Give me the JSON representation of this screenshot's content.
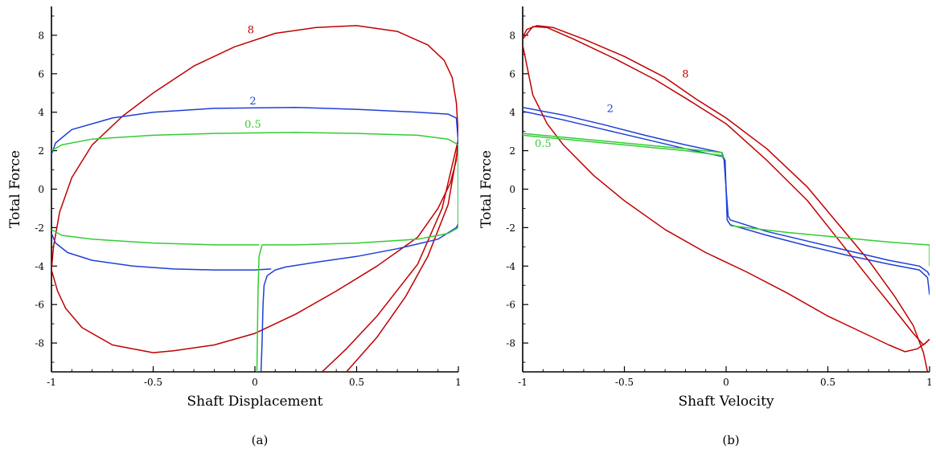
{
  "chart_data": [
    {
      "type": "line",
      "panel": "a",
      "caption": "(a)",
      "xlabel": "Shaft Displacement",
      "ylabel": "Total Force",
      "xlim": [
        -1,
        1
      ],
      "ylim": [
        -9.5,
        9.5
      ],
      "xticks": [
        -1,
        -0.5,
        0,
        0.5,
        1
      ],
      "xtick_labels": [
        "-1",
        "-0.5",
        "0",
        "0.5",
        "1"
      ],
      "yticks": [
        -8,
        -6,
        -4,
        -2,
        0,
        2,
        4,
        6,
        8
      ],
      "ytick_labels": [
        "-8",
        "-6",
        "-4",
        "-2",
        "0",
        "2",
        "4",
        "6",
        "8"
      ],
      "grid": false,
      "series": [
        {
          "name": "8",
          "color": "#c00000",
          "label_at": [
            -0.02,
            8.1
          ],
          "points": [
            [
              -1.0,
              -4.2
            ],
            [
              -0.99,
              -3.0
            ],
            [
              -0.96,
              -1.2
            ],
            [
              -0.9,
              0.6
            ],
            [
              -0.8,
              2.3
            ],
            [
              -0.65,
              3.8
            ],
            [
              -0.5,
              5.0
            ],
            [
              -0.3,
              6.4
            ],
            [
              -0.1,
              7.4
            ],
            [
              0.1,
              8.1
            ],
            [
              0.3,
              8.4
            ],
            [
              0.5,
              8.5
            ],
            [
              0.7,
              8.2
            ],
            [
              0.85,
              7.5
            ],
            [
              0.93,
              6.7
            ],
            [
              0.97,
              5.8
            ],
            [
              0.99,
              4.5
            ],
            [
              1.0,
              2.8
            ],
            [
              0.99,
              1.5
            ],
            [
              0.96,
              0.3
            ],
            [
              0.9,
              -1.0
            ],
            [
              0.8,
              -2.5
            ],
            [
              0.6,
              -4.0
            ],
            [
              0.4,
              -5.3
            ],
            [
              0.2,
              -6.5
            ],
            [
              0.0,
              -7.5
            ],
            [
              -0.2,
              -8.1
            ],
            [
              -0.4,
              -8.4
            ],
            [
              -0.5,
              -8.5
            ],
            [
              -0.7,
              -8.1
            ],
            [
              -0.85,
              -7.2
            ],
            [
              -0.93,
              -6.2
            ],
            [
              -0.97,
              -5.3
            ],
            [
              -1.0,
              -4.2
            ]
          ]
        },
        {
          "name": "8",
          "color": "#c00000",
          "points": [
            [
              1.0,
              2.3
            ],
            [
              0.95,
              -0.8
            ],
            [
              0.85,
              -3.5
            ],
            [
              0.74,
              -5.6
            ],
            [
              0.6,
              -7.7
            ],
            [
              0.5,
              -8.9
            ],
            [
              0.45,
              -9.5
            ]
          ]
        },
        {
          "name": "8",
          "color": "#c00000",
          "points": [
            [
              1.0,
              2.6
            ],
            [
              0.92,
              -1.0
            ],
            [
              0.8,
              -3.9
            ],
            [
              0.6,
              -6.6
            ],
            [
              0.45,
              -8.3
            ],
            [
              0.33,
              -9.5
            ]
          ]
        },
        {
          "name": "2",
          "color": "#1f3fd6",
          "label_at": [
            -0.01,
            4.4
          ],
          "points": [
            [
              -1.0,
              1.8
            ],
            [
              -0.98,
              2.4
            ],
            [
              -0.9,
              3.1
            ],
            [
              -0.7,
              3.7
            ],
            [
              -0.5,
              4.0
            ],
            [
              -0.2,
              4.2
            ],
            [
              0.2,
              4.25
            ],
            [
              0.5,
              4.15
            ],
            [
              0.8,
              4.0
            ],
            [
              0.95,
              3.9
            ],
            [
              0.99,
              3.7
            ],
            [
              1.0,
              2.4
            ],
            [
              1.0,
              -1.8
            ],
            [
              0.99,
              -2.0
            ],
            [
              0.9,
              -2.6
            ],
            [
              0.7,
              -3.1
            ],
            [
              0.5,
              -3.5
            ],
            [
              0.3,
              -3.8
            ],
            [
              0.15,
              -4.05
            ],
            [
              0.1,
              -4.2
            ],
            [
              0.06,
              -4.5
            ],
            [
              0.045,
              -5.0
            ],
            [
              0.04,
              -6.0
            ],
            [
              0.035,
              -8.0
            ],
            [
              0.03,
              -9.5
            ]
          ]
        },
        {
          "name": "2",
          "color": "#1f3fd6",
          "points": [
            [
              -1.0,
              -2.3
            ],
            [
              -0.98,
              -2.8
            ],
            [
              -0.92,
              -3.3
            ],
            [
              -0.8,
              -3.7
            ],
            [
              -0.6,
              -4.0
            ],
            [
              -0.4,
              -4.15
            ],
            [
              -0.2,
              -4.2
            ],
            [
              0.0,
              -4.2
            ],
            [
              0.08,
              -4.15
            ]
          ]
        },
        {
          "name": "0.5",
          "color": "#33cc33",
          "label_at": [
            -0.01,
            3.2
          ],
          "points": [
            [
              -1.0,
              2.0
            ],
            [
              -0.95,
              2.3
            ],
            [
              -0.8,
              2.6
            ],
            [
              -0.5,
              2.8
            ],
            [
              -0.2,
              2.9
            ],
            [
              0.2,
              2.95
            ],
            [
              0.5,
              2.9
            ],
            [
              0.8,
              2.8
            ],
            [
              0.95,
              2.6
            ],
            [
              1.0,
              2.3
            ],
            [
              1.0,
              -2.0
            ],
            [
              0.95,
              -2.3
            ],
            [
              0.8,
              -2.6
            ],
            [
              0.5,
              -2.8
            ],
            [
              0.2,
              -2.9
            ],
            [
              0.05,
              -2.9
            ],
            [
              0.035,
              -2.9
            ],
            [
              0.025,
              -3.3
            ],
            [
              0.02,
              -3.5
            ],
            [
              0.015,
              -5.5
            ],
            [
              0.01,
              -9.5
            ]
          ]
        },
        {
          "name": "0.5",
          "color": "#33cc33",
          "points": [
            [
              -1.0,
              -2.1
            ],
            [
              -0.95,
              -2.4
            ],
            [
              -0.8,
              -2.6
            ],
            [
              -0.5,
              -2.8
            ],
            [
              -0.2,
              -2.9
            ],
            [
              0.02,
              -2.9
            ]
          ]
        }
      ]
    },
    {
      "type": "line",
      "panel": "b",
      "caption": "(b)",
      "xlabel": "Shaft Velocity",
      "ylabel": "Total Force",
      "xlim": [
        -1,
        1
      ],
      "ylim": [
        -9.5,
        9.5
      ],
      "xticks": [
        -1,
        -0.5,
        0,
        0.5,
        1
      ],
      "xtick_labels": [
        "-1",
        "-0.5",
        "0",
        "0.5",
        "1"
      ],
      "yticks": [
        -8,
        -6,
        -4,
        -2,
        0,
        2,
        4,
        6,
        8
      ],
      "ytick_labels": [
        "-8",
        "-6",
        "-4",
        "-2",
        "0",
        "2",
        "4",
        "6",
        "8"
      ],
      "grid": false,
      "series": [
        {
          "name": "8",
          "color": "#c00000",
          "label_at": [
            -0.2,
            5.8
          ],
          "points": [
            [
              -1.0,
              7.9
            ],
            [
              -0.98,
              8.3
            ],
            [
              -0.93,
              8.5
            ],
            [
              -0.85,
              8.4
            ],
            [
              -0.7,
              7.8
            ],
            [
              -0.5,
              6.9
            ],
            [
              -0.3,
              5.8
            ],
            [
              -0.15,
              4.7
            ],
            [
              0.0,
              3.7
            ],
            [
              0.2,
              2.1
            ],
            [
              0.4,
              0.1
            ],
            [
              0.55,
              -1.8
            ],
            [
              0.7,
              -3.7
            ],
            [
              0.83,
              -5.6
            ],
            [
              0.92,
              -7.1
            ],
            [
              0.97,
              -8.5
            ],
            [
              0.99,
              -9.5
            ]
          ]
        },
        {
          "name": "8",
          "color": "#c00000",
          "points": [
            [
              -1.0,
              7.8
            ],
            [
              -0.95,
              8.45
            ],
            [
              -0.88,
              8.4
            ],
            [
              -0.75,
              7.8
            ],
            [
              -0.55,
              6.8
            ],
            [
              -0.35,
              5.7
            ],
            [
              -0.18,
              4.6
            ],
            [
              0.0,
              3.4
            ],
            [
              0.2,
              1.5
            ],
            [
              0.4,
              -0.6
            ],
            [
              0.55,
              -2.6
            ],
            [
              0.7,
              -4.6
            ],
            [
              0.83,
              -6.3
            ],
            [
              0.92,
              -7.5
            ],
            [
              0.97,
              -8.1
            ],
            [
              1.0,
              -7.8
            ]
          ]
        },
        {
          "name": "8",
          "color": "#c00000",
          "points": [
            [
              -1.0,
              7.5
            ],
            [
              -0.95,
              4.9
            ],
            [
              -0.88,
              3.4
            ],
            [
              -0.8,
              2.3
            ],
            [
              -0.65,
              0.7
            ],
            [
              -0.5,
              -0.6
            ],
            [
              -0.3,
              -2.1
            ],
            [
              -0.1,
              -3.3
            ],
            [
              0.1,
              -4.3
            ],
            [
              0.3,
              -5.4
            ],
            [
              0.5,
              -6.6
            ],
            [
              0.7,
              -7.6
            ],
            [
              0.8,
              -8.1
            ],
            [
              0.88,
              -8.45
            ],
            [
              0.94,
              -8.3
            ],
            [
              0.98,
              -8.0
            ],
            [
              1.0,
              -7.8
            ]
          ]
        },
        {
          "name": "2",
          "color": "#1f3fd6",
          "label_at": [
            -0.57,
            4.0
          ],
          "points": [
            [
              -1.0,
              4.25
            ],
            [
              -0.8,
              3.85
            ],
            [
              -0.6,
              3.35
            ],
            [
              -0.4,
              2.8
            ],
            [
              -0.2,
              2.3
            ],
            [
              -0.02,
              1.9
            ],
            [
              -0.01,
              1.5
            ],
            [
              0.0,
              0.0
            ],
            [
              0.01,
              -1.4
            ],
            [
              0.02,
              -1.6
            ],
            [
              0.2,
              -2.2
            ],
            [
              0.4,
              -2.7
            ],
            [
              0.6,
              -3.2
            ],
            [
              0.8,
              -3.7
            ],
            [
              0.95,
              -4.0
            ],
            [
              0.99,
              -4.3
            ],
            [
              1.0,
              -4.5
            ]
          ]
        },
        {
          "name": "2",
          "color": "#1f3fd6",
          "points": [
            [
              -1.0,
              4.05
            ],
            [
              -0.8,
              3.6
            ],
            [
              -0.6,
              3.1
            ],
            [
              -0.4,
              2.6
            ],
            [
              -0.2,
              2.1
            ],
            [
              -0.02,
              1.7
            ],
            [
              -0.005,
              1.5
            ],
            [
              0.005,
              -1.6
            ],
            [
              0.02,
              -1.85
            ],
            [
              0.2,
              -2.4
            ],
            [
              0.4,
              -2.95
            ],
            [
              0.6,
              -3.45
            ],
            [
              0.8,
              -3.9
            ],
            [
              0.95,
              -4.2
            ],
            [
              0.99,
              -4.6
            ],
            [
              1.0,
              -5.5
            ]
          ]
        },
        {
          "name": "0.5",
          "color": "#33cc33",
          "label_at": [
            -0.9,
            2.2
          ],
          "points": [
            [
              -1.0,
              2.9
            ],
            [
              -0.6,
              2.5
            ],
            [
              -0.2,
              2.1
            ],
            [
              -0.02,
              1.9
            ],
            [
              -0.02,
              1.7
            ],
            [
              -0.005,
              1.6
            ]
          ]
        },
        {
          "name": "0.5",
          "color": "#33cc33",
          "points": [
            [
              -1.0,
              2.8
            ],
            [
              -0.6,
              2.4
            ],
            [
              -0.2,
              2.0
            ],
            [
              -0.02,
              1.75
            ]
          ]
        },
        {
          "name": "0.5",
          "color": "#33cc33",
          "points": [
            [
              0.02,
              -1.9
            ],
            [
              0.3,
              -2.25
            ],
            [
              0.6,
              -2.55
            ],
            [
              0.8,
              -2.75
            ],
            [
              0.99,
              -2.9
            ],
            [
              1.0,
              -2.9
            ],
            [
              1.0,
              -4.0
            ]
          ]
        }
      ]
    }
  ]
}
